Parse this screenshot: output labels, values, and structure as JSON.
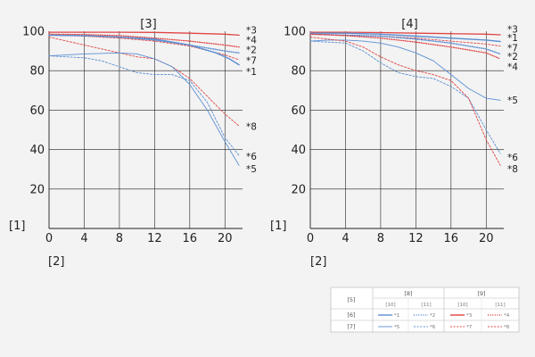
{
  "colors": {
    "background": "#f3f3f3",
    "grid": "#222222",
    "blue": "#5b8fd2",
    "red": "#e04545"
  },
  "notes": {
    "y_axis_mark": "[1]",
    "x_axis_mark": "[2]"
  },
  "legend": {
    "row_header": "[5]",
    "group_headers": [
      "[8]",
      "[9]"
    ],
    "sub_headers": [
      "[10]",
      "[11]",
      "[10]",
      "[11]"
    ],
    "rows": [
      {
        "label": "[6]",
        "entries": [
          "*1",
          "*2",
          "*3",
          "*4"
        ]
      },
      {
        "label": "[7]",
        "entries": [
          "*5",
          "*6",
          "*7",
          "*8"
        ]
      }
    ]
  },
  "chart_data": [
    {
      "type": "line",
      "title": "[3]",
      "xlim": [
        0,
        22
      ],
      "ylim": [
        0,
        100
      ],
      "x_ticks": [
        0,
        4,
        8,
        12,
        16,
        20
      ],
      "y_ticks": [
        20,
        40,
        60,
        80,
        100
      ],
      "grid": true,
      "series": [
        {
          "name": "*3",
          "color": "red",
          "dash": "solid",
          "width": 1.3,
          "x": [
            0,
            4,
            8,
            12,
            16,
            20,
            21.6
          ],
          "y": [
            99.5,
            99.5,
            99.5,
            99.4,
            99.0,
            98.5,
            98.0
          ]
        },
        {
          "name": "*4",
          "color": "red",
          "dash": "dotted",
          "width": 1.3,
          "x": [
            0,
            4,
            8,
            12,
            16,
            20,
            21.6
          ],
          "y": [
            98.5,
            98.3,
            97.8,
            96.5,
            95.0,
            93.0,
            92.0
          ]
        },
        {
          "name": "*2",
          "color": "blue",
          "dash": "dotted",
          "width": 1.4,
          "x": [
            0,
            4,
            8,
            12,
            16,
            20,
            21.6
          ],
          "y": [
            98.0,
            97.8,
            97.0,
            95.5,
            93.0,
            90.0,
            89.0
          ]
        },
        {
          "name": "*7",
          "color": "red",
          "dash": "dashed",
          "width": 0.9,
          "x": [
            0,
            4,
            8,
            12,
            16,
            20,
            21.6
          ],
          "y": [
            98.0,
            97.5,
            96.5,
            95.0,
            92.5,
            88.0,
            85.5
          ]
        },
        {
          "name": "*1",
          "color": "blue",
          "dash": "solid",
          "width": 1.4,
          "x": [
            0,
            4,
            8,
            12,
            16,
            19,
            20.5,
            21.6
          ],
          "y": [
            98.0,
            97.8,
            97.0,
            96.0,
            93.0,
            89.0,
            86.0,
            83.0
          ]
        },
        {
          "name": "*8",
          "color": "red",
          "dash": "dashed",
          "width": 0.9,
          "x": [
            0,
            4,
            8,
            10,
            12,
            14,
            16,
            18,
            20,
            21.6
          ],
          "y": [
            97.0,
            93.0,
            89.0,
            87.0,
            86.0,
            82.0,
            76.0,
            67.0,
            58.0,
            52.0
          ]
        },
        {
          "name": "*6",
          "color": "blue",
          "dash": "dashed",
          "width": 0.9,
          "x": [
            0,
            4,
            6,
            8,
            10,
            12,
            14,
            16,
            18,
            20,
            21.6
          ],
          "y": [
            87.5,
            86.5,
            85.0,
            82.0,
            79.0,
            78.0,
            78.0,
            75.0,
            64.0,
            46.0,
            37.0
          ]
        },
        {
          "name": "*5",
          "color": "blue",
          "dash": "solid",
          "width": 0.9,
          "x": [
            0,
            4,
            8,
            10,
            12,
            14,
            16,
            18,
            20,
            21.6
          ],
          "y": [
            87.5,
            88.5,
            89.0,
            88.5,
            86.0,
            82.0,
            73.0,
            60.0,
            44.0,
            32.0
          ]
        }
      ],
      "end_labels": [
        {
          "text": "*3",
          "y": 100.5
        },
        {
          "text": "*4",
          "y": 95.5
        },
        {
          "text": "*2",
          "y": 90.5
        },
        {
          "text": "*7",
          "y": 85.0
        },
        {
          "text": "*1",
          "y": 79.5
        },
        {
          "text": "*8",
          "y": 51.5
        },
        {
          "text": "*6",
          "y": 36.5
        },
        {
          "text": "*5",
          "y": 30.0
        }
      ]
    },
    {
      "type": "line",
      "title": "[4]",
      "xlim": [
        0,
        22
      ],
      "ylim": [
        0,
        100
      ],
      "x_ticks": [
        0,
        4,
        8,
        12,
        16,
        20
      ],
      "y_ticks": [
        20,
        40,
        60,
        80,
        100
      ],
      "grid": true,
      "series": [
        {
          "name": "*3",
          "color": "red",
          "dash": "solid",
          "width": 1.3,
          "x": [
            0,
            4,
            8,
            12,
            16,
            20,
            21.6
          ],
          "y": [
            99.5,
            99.5,
            99.3,
            99.0,
            98.8,
            98.5,
            98.2
          ]
        },
        {
          "name": "*1",
          "color": "blue",
          "dash": "solid",
          "width": 1.4,
          "x": [
            0,
            4,
            8,
            12,
            16,
            20,
            21.6
          ],
          "y": [
            99.0,
            99.0,
            98.5,
            97.5,
            96.5,
            95.5,
            94.8
          ]
        },
        {
          "name": "*7",
          "color": "red",
          "dash": "dashed",
          "width": 0.9,
          "x": [
            0,
            4,
            8,
            12,
            16,
            20,
            21.6
          ],
          "y": [
            98.5,
            98.0,
            97.5,
            96.5,
            95.0,
            93.5,
            92.5
          ]
        },
        {
          "name": "*2",
          "color": "blue",
          "dash": "dotted",
          "width": 1.4,
          "x": [
            0,
            4,
            8,
            12,
            16,
            20,
            21.6
          ],
          "y": [
            98.5,
            98.0,
            97.5,
            96.0,
            94.0,
            91.0,
            88.5
          ]
        },
        {
          "name": "*4",
          "color": "red",
          "dash": "dotted",
          "width": 1.3,
          "x": [
            0,
            4,
            8,
            12,
            16,
            20,
            21.6
          ],
          "y": [
            98.5,
            97.8,
            96.5,
            94.5,
            92.0,
            89.0,
            86.0
          ]
        },
        {
          "name": "*5",
          "color": "blue",
          "dash": "solid",
          "width": 0.9,
          "x": [
            0,
            2,
            4,
            6,
            8,
            10,
            12,
            14,
            16,
            18,
            20,
            21.6
          ],
          "y": [
            95.0,
            95.5,
            95.5,
            95.0,
            94.0,
            92.0,
            89.0,
            85.0,
            78.0,
            71.0,
            66.0,
            65.0
          ]
        },
        {
          "name": "*6",
          "color": "blue",
          "dash": "dashed",
          "width": 0.9,
          "x": [
            0,
            4,
            6,
            8,
            10,
            12,
            14,
            16,
            18,
            20,
            21.6
          ],
          "y": [
            95.0,
            94.0,
            90.0,
            84.0,
            79.0,
            77.0,
            76.0,
            72.0,
            66.0,
            50.0,
            38.0
          ]
        },
        {
          "name": "*8",
          "color": "red",
          "dash": "dashed",
          "width": 0.9,
          "x": [
            0,
            2,
            4,
            6,
            8,
            10,
            12,
            14,
            16,
            18,
            20,
            21.6
          ],
          "y": [
            97.0,
            96.0,
            95.0,
            92.0,
            87.0,
            83.0,
            80.0,
            78.0,
            75.0,
            66.0,
            45.0,
            32.0
          ]
        }
      ],
      "end_labels": [
        {
          "text": "*3",
          "y": 101.0
        },
        {
          "text": "*1",
          "y": 96.5
        },
        {
          "text": "*7",
          "y": 91.5
        },
        {
          "text": "*2",
          "y": 87.0
        },
        {
          "text": "*4",
          "y": 82.0
        },
        {
          "text": "*5",
          "y": 65.0
        },
        {
          "text": "*6",
          "y": 36.0
        },
        {
          "text": "*8",
          "y": 30.0
        }
      ]
    }
  ]
}
